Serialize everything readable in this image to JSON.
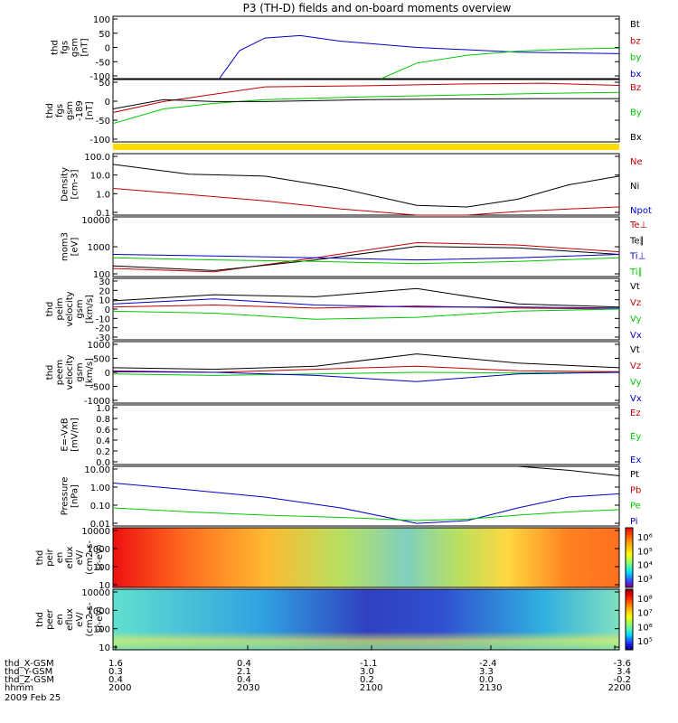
{
  "title": "P3 (TH-D) fields and on-board moments overview",
  "colors": {
    "black": "#000000",
    "red": "#c00000",
    "green": "#00c800",
    "blue": "#0000c8",
    "yellow": "#ffdc00"
  },
  "time_axis": {
    "ticks": [
      "2000",
      "2030",
      "2100",
      "2130",
      "2200"
    ],
    "rows": [
      {
        "label": "thd_X-GSM",
        "values": [
          "1.6",
          "0.4",
          "-1.1",
          "-2.4",
          "-3.6"
        ]
      },
      {
        "label": "thd_Y-GSM",
        "values": [
          "0.3",
          "2.1",
          "3.0",
          "3.3",
          "3.4"
        ]
      },
      {
        "label": "thd_Z-GSM",
        "values": [
          "0.4",
          "0.4",
          "0.2",
          "0.0",
          "-0.2"
        ]
      },
      {
        "label": "hhmm",
        "values": []
      }
    ],
    "date": "2009 Feb 25"
  },
  "chart_data": [
    {
      "type": "line",
      "ylabel": [
        "thd",
        "fgs",
        "gsm",
        "[nT]"
      ],
      "yticks": [
        "100",
        "50",
        "0",
        "-50",
        "-100"
      ],
      "ylim": [
        -100,
        100
      ],
      "legend": [
        {
          "name": "Bt",
          "color": "black"
        },
        {
          "name": "bz",
          "color": "red"
        },
        {
          "name": "by",
          "color": "green"
        },
        {
          "name": "bx",
          "color": "blue"
        }
      ],
      "series": [
        {
          "name": "bx",
          "color": "blue",
          "x": [
            0.21,
            0.25,
            0.3,
            0.37,
            0.45,
            0.6,
            0.8,
            1.0
          ],
          "y": [
            -100,
            -10,
            30,
            38,
            20,
            0,
            -15,
            -20
          ]
        },
        {
          "name": "by",
          "color": "green",
          "x": [
            0.53,
            0.6,
            0.7,
            0.8,
            0.9,
            1.0
          ],
          "y": [
            -100,
            -50,
            -25,
            -12,
            -5,
            -2
          ]
        }
      ]
    },
    {
      "type": "line",
      "ylabel": [
        "thd",
        "fgs",
        "gsm",
        "-189",
        "[nT]"
      ],
      "yticks": [
        "50",
        "0",
        "-50",
        "-100"
      ],
      "ylim": [
        -120,
        50
      ],
      "legend": [
        {
          "name": "Bz",
          "color": "red"
        },
        {
          "name": "By",
          "color": "green"
        },
        {
          "name": "Bx",
          "color": "black"
        }
      ],
      "series": [
        {
          "name": "Bz",
          "color": "red",
          "x": [
            0,
            0.1,
            0.2,
            0.3,
            0.5,
            0.7,
            0.85,
            1.0
          ],
          "y": [
            -40,
            -10,
            10,
            30,
            33,
            38,
            40,
            34
          ]
        },
        {
          "name": "By",
          "color": "green",
          "x": [
            0,
            0.1,
            0.2,
            0.3,
            0.5,
            0.7,
            0.85,
            1.0
          ],
          "y": [
            -70,
            -30,
            -15,
            -5,
            3,
            8,
            12,
            15
          ]
        },
        {
          "name": "Bx",
          "color": "black",
          "x": [
            0,
            0.1,
            0.2,
            0.3,
            0.5,
            0.7,
            0.85,
            1.0
          ],
          "y": [
            -30,
            -5,
            -10,
            -10,
            -5,
            -3,
            -2,
            -2
          ]
        }
      ]
    },
    {
      "type": "line",
      "ylabel": [
        "Density",
        "[cm-3]"
      ],
      "yscale": "log",
      "yticks": [
        "100.0",
        "10.0",
        "1.0",
        "0.1"
      ],
      "ylim": [
        0.1,
        100
      ],
      "legend": [
        {
          "name": "Ne",
          "color": "red"
        },
        {
          "name": "Ni",
          "color": "black"
        },
        {
          "name": "Npot",
          "color": "blue"
        }
      ],
      "series": [
        {
          "name": "Ni",
          "color": "black",
          "x": [
            0,
            0.15,
            0.3,
            0.45,
            0.6,
            0.7,
            0.8,
            0.9,
            1.0
          ],
          "y": [
            30,
            10,
            8,
            2,
            0.3,
            0.25,
            0.6,
            3,
            8
          ]
        },
        {
          "name": "Ne",
          "color": "red",
          "x": [
            0,
            0.15,
            0.3,
            0.45,
            0.6,
            0.7,
            0.8,
            0.9,
            1.0
          ],
          "y": [
            2,
            1,
            0.5,
            0.2,
            0.1,
            0.1,
            0.15,
            0.2,
            0.25
          ]
        }
      ]
    },
    {
      "type": "line",
      "ylabel": [
        "mom3",
        "[eV]"
      ],
      "yscale": "log",
      "yticks": [
        "10000",
        "1000",
        "100"
      ],
      "ylim": [
        60,
        10000
      ],
      "legend": [
        {
          "name": "Te⊥",
          "color": "red"
        },
        {
          "name": "Te∥",
          "color": "black"
        },
        {
          "name": "Ti⊥",
          "color": "blue"
        },
        {
          "name": "Ti∥",
          "color": "green"
        }
      ],
      "series": [
        {
          "name": "Te⊥",
          "color": "red",
          "x": [
            0,
            0.2,
            0.4,
            0.6,
            0.8,
            1.0
          ],
          "y": [
            120,
            90,
            300,
            1100,
            900,
            500
          ]
        },
        {
          "name": "Te∥",
          "color": "black",
          "x": [
            0,
            0.2,
            0.4,
            0.6,
            0.8,
            1.0
          ],
          "y": [
            150,
            100,
            250,
            800,
            700,
            400
          ]
        },
        {
          "name": "Ti⊥",
          "color": "blue",
          "x": [
            0,
            0.2,
            0.4,
            0.6,
            0.8,
            1.0
          ],
          "y": [
            400,
            350,
            300,
            250,
            300,
            400
          ]
        },
        {
          "name": "Ti∥",
          "color": "green",
          "x": [
            0,
            0.2,
            0.4,
            0.6,
            0.8,
            1.0
          ],
          "y": [
            300,
            250,
            220,
            180,
            220,
            300
          ]
        }
      ]
    },
    {
      "type": "line",
      "ylabel": [
        "thd",
        "peim",
        "velocity",
        "gsm",
        "[km/s]"
      ],
      "yticks": [
        "30",
        "20",
        "10",
        "0",
        "-10",
        "-20",
        "-30"
      ],
      "ylim": [
        -30,
        30
      ],
      "legend": [
        {
          "name": "Vt",
          "color": "black"
        },
        {
          "name": "Vz",
          "color": "red"
        },
        {
          "name": "Vy",
          "color": "green"
        },
        {
          "name": "Vx",
          "color": "blue"
        }
      ],
      "series": [
        {
          "name": "Vt",
          "color": "black",
          "x": [
            0,
            0.2,
            0.4,
            0.6,
            0.8,
            1.0
          ],
          "y": [
            8,
            14,
            12,
            20,
            5,
            2
          ]
        },
        {
          "name": "Vz",
          "color": "red",
          "x": [
            0,
            0.2,
            0.4,
            0.6,
            0.8,
            1.0
          ],
          "y": [
            2,
            4,
            1,
            3,
            1,
            0
          ]
        },
        {
          "name": "Vy",
          "color": "green",
          "x": [
            0,
            0.2,
            0.4,
            0.6,
            0.8,
            1.0
          ],
          "y": [
            -2,
            -4,
            -10,
            -8,
            -2,
            0
          ]
        },
        {
          "name": "Vx",
          "color": "blue",
          "x": [
            0,
            0.2,
            0.4,
            0.6,
            0.8,
            1.0
          ],
          "y": [
            5,
            10,
            4,
            2,
            2,
            1
          ]
        }
      ]
    },
    {
      "type": "line",
      "ylabel": [
        "thd",
        "peem",
        "velocity",
        "gsm",
        "[km/s]"
      ],
      "yticks": [
        "1000",
        "500",
        "0",
        "-500",
        "-1000"
      ],
      "ylim": [
        -1000,
        1000
      ],
      "legend": [
        {
          "name": "Vt",
          "color": "black"
        },
        {
          "name": "Vz",
          "color": "red"
        },
        {
          "name": "Vy",
          "color": "green"
        },
        {
          "name": "Vx",
          "color": "blue"
        }
      ],
      "series": [
        {
          "name": "Vt",
          "color": "black",
          "x": [
            0,
            0.2,
            0.4,
            0.6,
            0.8,
            1.0
          ],
          "y": [
            150,
            100,
            200,
            600,
            300,
            150
          ]
        },
        {
          "name": "Vz",
          "color": "red",
          "x": [
            0,
            0.2,
            0.4,
            0.6,
            0.8,
            1.0
          ],
          "y": [
            50,
            0,
            100,
            200,
            50,
            20
          ]
        },
        {
          "name": "Vy",
          "color": "green",
          "x": [
            0,
            0.2,
            0.4,
            0.6,
            0.8,
            1.0
          ],
          "y": [
            -50,
            -100,
            -50,
            0,
            -20,
            0
          ]
        },
        {
          "name": "Vx",
          "color": "blue",
          "x": [
            0,
            0.2,
            0.4,
            0.6,
            0.8,
            1.0
          ],
          "y": [
            20,
            0,
            -100,
            -300,
            -50,
            0
          ]
        }
      ]
    },
    {
      "type": "line",
      "ylabel": [
        "E=-VxB",
        "[mV/m]"
      ],
      "yticks": [
        "1.0",
        "0.8",
        "0.6",
        "0.4",
        "0.2",
        "0.0"
      ],
      "ylim": [
        0,
        1
      ],
      "legend": [
        {
          "name": "Ez",
          "color": "red"
        },
        {
          "name": "Ey",
          "color": "green"
        },
        {
          "name": "Ex",
          "color": "blue"
        }
      ],
      "series": []
    },
    {
      "type": "line",
      "ylabel": [
        "Pressure",
        "[nPa]"
      ],
      "yscale": "log",
      "yticks": [
        "10.00",
        "1.00",
        "0.10",
        "0.01"
      ],
      "ylim": [
        0.005,
        10
      ],
      "legend": [
        {
          "name": "Pt",
          "color": "black"
        },
        {
          "name": "Pb",
          "color": "red"
        },
        {
          "name": "Pe",
          "color": "green"
        },
        {
          "name": "Pi",
          "color": "blue"
        }
      ],
      "series": [
        {
          "name": "Pt",
          "color": "black",
          "x": [
            0.8,
            0.9,
            1.0
          ],
          "y": [
            10,
            6,
            3
          ]
        },
        {
          "name": "Pi",
          "color": "blue",
          "x": [
            0,
            0.15,
            0.3,
            0.45,
            0.6,
            0.7,
            0.8,
            0.9,
            1.0
          ],
          "y": [
            1.2,
            0.5,
            0.2,
            0.05,
            0.007,
            0.01,
            0.05,
            0.2,
            0.3
          ]
        },
        {
          "name": "Pe",
          "color": "green",
          "x": [
            0,
            0.15,
            0.3,
            0.45,
            0.6,
            0.7,
            0.8,
            0.9,
            1.0
          ],
          "y": [
            0.05,
            0.03,
            0.02,
            0.015,
            0.01,
            0.012,
            0.02,
            0.03,
            0.04
          ]
        }
      ]
    },
    {
      "type": "heatmap",
      "ylabel": [
        "thd",
        "peir",
        "en",
        "eflux",
        "eV/",
        "(cm2-s-",
        "sr-eV)"
      ],
      "yticks": [
        "10000",
        "1000",
        "100",
        "10"
      ],
      "colorbar": {
        "ticks": [
          "10⁶",
          "10⁵",
          "10⁴",
          "10³"
        ]
      }
    },
    {
      "type": "heatmap",
      "ylabel": [
        "thd",
        "peer",
        "en",
        "eflux",
        "eV/",
        "(cm2-s-",
        "sr-eV)"
      ],
      "yticks": [
        "10000",
        "1000",
        "100",
        "10"
      ],
      "colorbar": {
        "ticks": [
          "10⁸",
          "10⁷",
          "10⁶",
          "10⁵"
        ]
      }
    }
  ]
}
